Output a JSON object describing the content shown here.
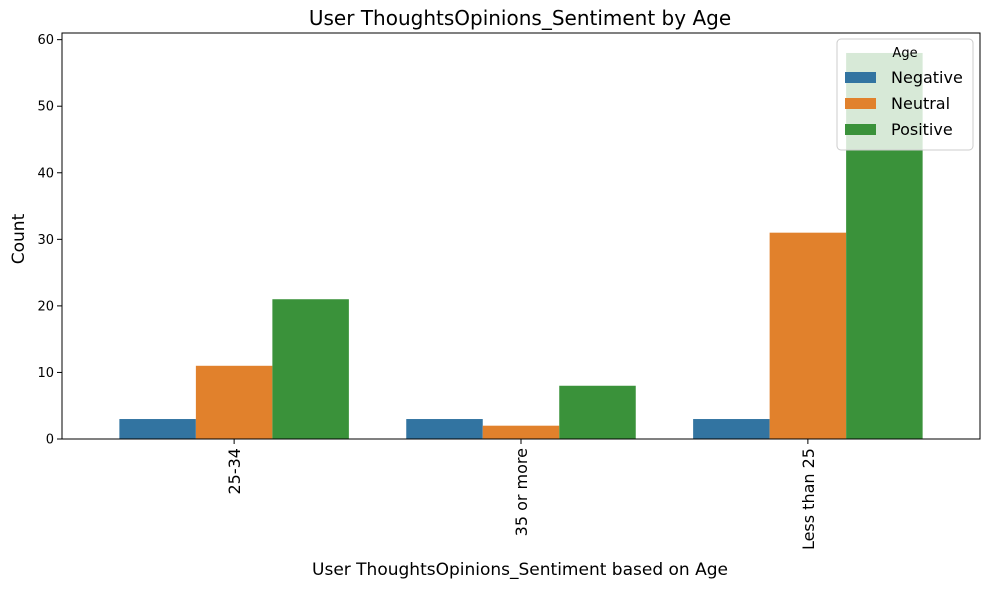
{
  "chart_data": {
    "type": "bar",
    "title": "User ThoughtsOpinions_Sentiment by Age",
    "xlabel": "User ThoughtsOpinions_Sentiment based on Age",
    "ylabel": "Count",
    "categories": [
      "25-34",
      "35 or more",
      "Less than 25"
    ],
    "series": [
      {
        "name": "Negative",
        "color": "#3274a1",
        "values": [
          3,
          3,
          3
        ]
      },
      {
        "name": "Neutral",
        "color": "#e1812c",
        "values": [
          11,
          2,
          31
        ]
      },
      {
        "name": "Positive",
        "color": "#3a923a",
        "values": [
          21,
          8,
          58
        ]
      }
    ],
    "ylim": [
      0,
      61
    ],
    "yticks": [
      0,
      10,
      20,
      30,
      40,
      50,
      60
    ],
    "legend": {
      "title": "Age",
      "placement": "top-right"
    },
    "grid": false
  }
}
